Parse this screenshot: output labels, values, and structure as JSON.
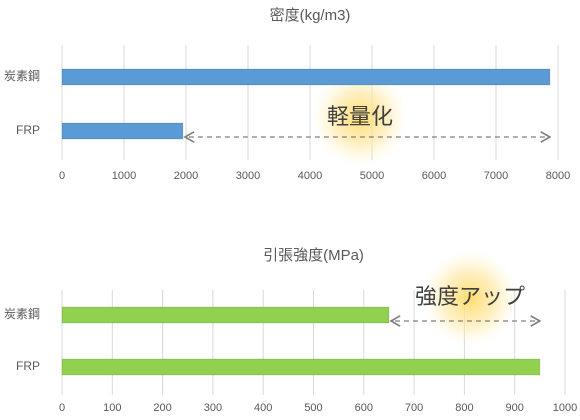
{
  "chart_data": [
    {
      "type": "bar",
      "horizontal": true,
      "title": "密度(kg/m3)",
      "categories": [
        "炭素鋼",
        "FRP"
      ],
      "values": [
        7870,
        1950
      ],
      "color": "#5b9bd5",
      "xlim": [
        0,
        8000
      ],
      "xticks": [
        0,
        1000,
        2000,
        3000,
        4000,
        5000,
        6000,
        7000,
        8000
      ],
      "grid": true,
      "annotation": "軽量化"
    },
    {
      "type": "bar",
      "horizontal": true,
      "title": "引張強度(MPa)",
      "categories": [
        "炭素鋼",
        "FRP"
      ],
      "values": [
        650,
        950
      ],
      "color": "#92d050",
      "xlim": [
        0,
        1000
      ],
      "xticks": [
        0,
        100,
        200,
        300,
        400,
        500,
        600,
        700,
        800,
        900,
        1000
      ],
      "grid": true,
      "annotation": "強度アップ"
    }
  ]
}
